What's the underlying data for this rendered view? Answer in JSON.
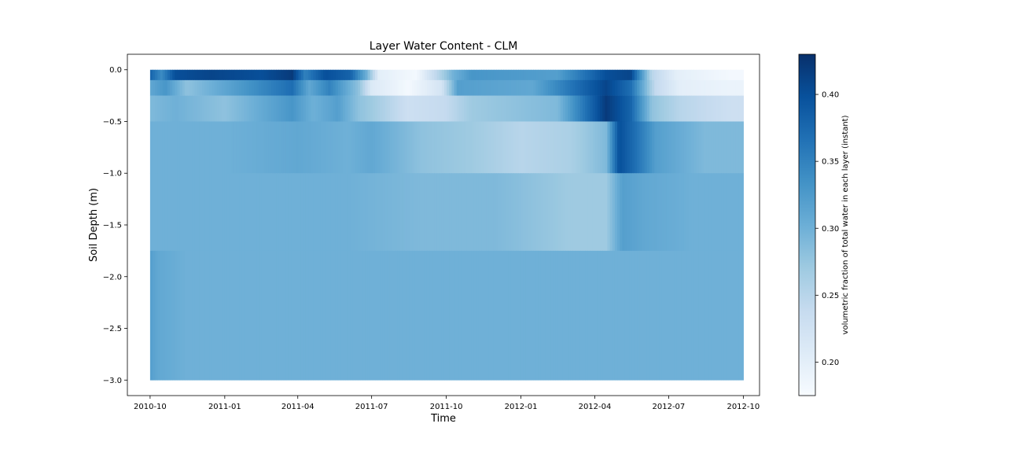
{
  "chart_data": {
    "type": "heatmap",
    "title": "Layer Water Content - CLM",
    "xlabel": "Time",
    "ylabel": "Soil Depth (m)",
    "colorbar_label": "volumetric fraction of total water in each layer (instant)",
    "colormap": "Blues",
    "colormap_stops": [
      "#f7fbff",
      "#deebf7",
      "#c6dbef",
      "#9ecae1",
      "#6baed6",
      "#4292c6",
      "#2171b5",
      "#08519c",
      "#08306b"
    ],
    "vlim": [
      0.175,
      0.43
    ],
    "colorbar_ticks": [
      0.2,
      0.25,
      0.3,
      0.35,
      0.4
    ],
    "colorbar_tick_labels": [
      "0.20",
      "0.25",
      "0.30",
      "0.35",
      "0.40"
    ],
    "xlim": [
      "2010-09-03",
      "2012-10-21"
    ],
    "ylim": [
      -3.15,
      0.15
    ],
    "x_ticks": [
      "2010-10",
      "2011-01",
      "2011-04",
      "2011-07",
      "2011-10",
      "2012-01",
      "2012-04",
      "2012-07",
      "2012-10"
    ],
    "x_tick_positions": [
      "2010-10-01",
      "2011-01-01",
      "2011-04-01",
      "2011-07-01",
      "2011-10-01",
      "2012-01-01",
      "2012-04-01",
      "2012-07-01",
      "2012-10-01"
    ],
    "y_ticks": [
      0.0,
      -0.5,
      -1.0,
      -1.5,
      -2.0,
      -2.5,
      -3.0
    ],
    "y_tick_labels": [
      "0.0",
      "−0.5",
      "−1.0",
      "−1.5",
      "−2.0",
      "−2.5",
      "−3.0"
    ],
    "layers": [
      {
        "top": 0.0,
        "bottom": -0.1,
        "segments": [
          [
            "2010-10-01",
            0.38
          ],
          [
            "2010-10-15",
            0.34
          ],
          [
            "2010-11-01",
            0.4
          ],
          [
            "2010-12-15",
            0.41
          ],
          [
            "2011-02-15",
            0.4
          ],
          [
            "2011-03-25",
            0.42
          ],
          [
            "2011-04-10",
            0.35
          ],
          [
            "2011-05-05",
            0.4
          ],
          [
            "2011-06-05",
            0.38
          ],
          [
            "2011-06-25",
            0.3
          ],
          [
            "2011-07-10",
            0.2
          ],
          [
            "2011-08-25",
            0.18
          ],
          [
            "2011-10-10",
            0.3
          ],
          [
            "2011-11-01",
            0.33
          ],
          [
            "2012-02-15",
            0.32
          ],
          [
            "2012-04-15",
            0.4
          ],
          [
            "2012-05-15",
            0.41
          ],
          [
            "2012-06-10",
            0.25
          ],
          [
            "2012-07-10",
            0.2
          ],
          [
            "2012-09-15",
            0.18
          ]
        ]
      },
      {
        "top": -0.1,
        "bottom": -0.25,
        "segments": [
          [
            "2010-10-01",
            0.31
          ],
          [
            "2010-10-20",
            0.33
          ],
          [
            "2010-11-15",
            0.28
          ],
          [
            "2011-03-25",
            0.37
          ],
          [
            "2011-04-15",
            0.31
          ],
          [
            "2011-05-10",
            0.35
          ],
          [
            "2011-06-15",
            0.28
          ],
          [
            "2011-07-01",
            0.21
          ],
          [
            "2011-08-15",
            0.18
          ],
          [
            "2011-09-25",
            0.22
          ],
          [
            "2011-10-15",
            0.32
          ],
          [
            "2012-01-15",
            0.31
          ],
          [
            "2012-04-15",
            0.41
          ],
          [
            "2012-05-15",
            0.37
          ],
          [
            "2012-06-15",
            0.24
          ],
          [
            "2012-07-15",
            0.2
          ],
          [
            "2012-09-15",
            0.19
          ]
        ]
      },
      {
        "top": -0.25,
        "bottom": -0.5,
        "segments": [
          [
            "2010-10-01",
            0.29
          ],
          [
            "2010-11-01",
            0.3
          ],
          [
            "2011-01-01",
            0.28
          ],
          [
            "2011-03-25",
            0.33
          ],
          [
            "2011-04-20",
            0.3
          ],
          [
            "2011-05-20",
            0.32
          ],
          [
            "2011-06-15",
            0.28
          ],
          [
            "2011-07-01",
            0.27
          ],
          [
            "2011-08-15",
            0.23
          ],
          [
            "2011-10-01",
            0.24
          ],
          [
            "2011-11-01",
            0.27
          ],
          [
            "2012-02-15",
            0.29
          ],
          [
            "2012-04-15",
            0.42
          ],
          [
            "2012-05-15",
            0.38
          ],
          [
            "2012-06-10",
            0.28
          ],
          [
            "2012-07-15",
            0.25
          ],
          [
            "2012-09-15",
            0.23
          ]
        ]
      },
      {
        "top": -0.5,
        "bottom": -1.0,
        "segments": [
          [
            "2010-10-01",
            0.3
          ],
          [
            "2011-01-01",
            0.3
          ],
          [
            "2011-04-01",
            0.31
          ],
          [
            "2011-06-01",
            0.3
          ],
          [
            "2011-07-01",
            0.31
          ],
          [
            "2011-09-01",
            0.28
          ],
          [
            "2011-11-01",
            0.27
          ],
          [
            "2012-01-01",
            0.25
          ],
          [
            "2012-03-01",
            0.26
          ],
          [
            "2012-04-15",
            0.29
          ],
          [
            "2012-05-01",
            0.4
          ],
          [
            "2012-05-20",
            0.37
          ],
          [
            "2012-06-15",
            0.32
          ],
          [
            "2012-08-15",
            0.29
          ]
        ]
      },
      {
        "top": -1.0,
        "bottom": -1.75,
        "segments": [
          [
            "2010-10-01",
            0.3
          ],
          [
            "2011-06-01",
            0.3
          ],
          [
            "2011-09-01",
            0.29
          ],
          [
            "2011-12-01",
            0.29
          ],
          [
            "2012-01-15",
            0.28
          ],
          [
            "2012-03-01",
            0.27
          ],
          [
            "2012-04-15",
            0.27
          ],
          [
            "2012-05-05",
            0.32
          ],
          [
            "2012-06-01",
            0.31
          ],
          [
            "2012-08-01",
            0.3
          ]
        ]
      },
      {
        "top": -1.75,
        "bottom": -3.0,
        "segments": [
          [
            "2010-10-01",
            0.32
          ],
          [
            "2010-10-10",
            0.31
          ],
          [
            "2010-11-15",
            0.3
          ],
          [
            "2012-10-01",
            0.3
          ]
        ]
      }
    ],
    "data_start": "2010-10-01",
    "data_end": "2012-10-01"
  }
}
